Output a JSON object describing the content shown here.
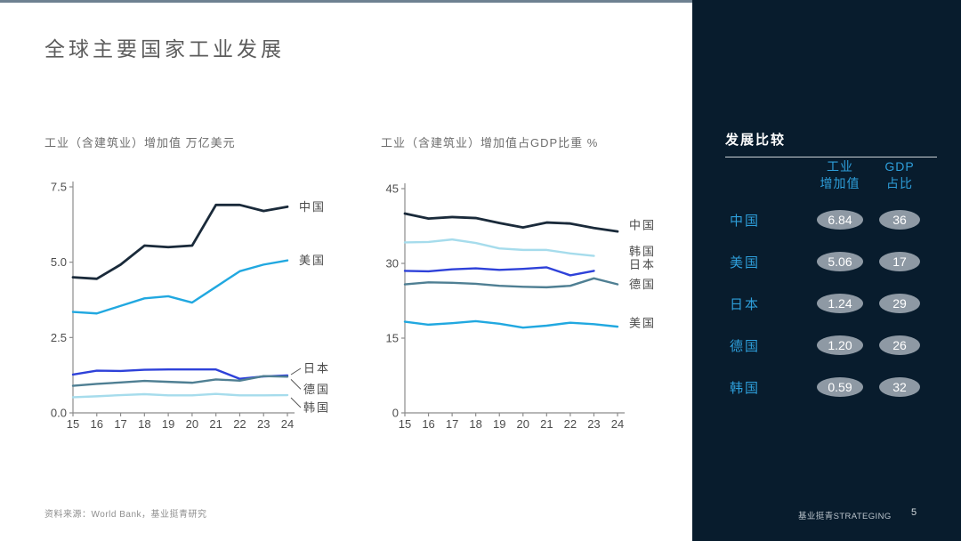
{
  "slide": {
    "title": "全球主要国家工业发展",
    "accent_strip_color": "#6e8191"
  },
  "source_note": "资料来源：World Bank，基业挺青研究",
  "footer": {
    "brand": "基业挺青STRATEGING",
    "page_number": "5"
  },
  "panel": {
    "title": "发展比较",
    "col_headers": [
      {
        "line1": "工业",
        "line2": "增加值"
      },
      {
        "line1": "GDP",
        "line2": "占比"
      }
    ],
    "rows": [
      {
        "country": "中国",
        "industry_value": "6.84",
        "gdp_share": "36"
      },
      {
        "country": "美国",
        "industry_value": "5.06",
        "gdp_share": "17"
      },
      {
        "country": "日本",
        "industry_value": "1.24",
        "gdp_share": "29"
      },
      {
        "country": "德国",
        "industry_value": "1.20",
        "gdp_share": "26"
      },
      {
        "country": "韩国",
        "industry_value": "0.59",
        "gdp_share": "32"
      }
    ],
    "colors": {
      "background": "#081c2d",
      "accent_blue": "#2e9fdb",
      "pill_bg": "#8e99a4",
      "pill_text": "#ffffff",
      "title_text": "#ffffff"
    }
  },
  "chart_data": [
    {
      "type": "line",
      "title": "工业（含建筑业）增加值 万亿美元",
      "x": [
        15,
        16,
        17,
        18,
        19,
        20,
        21,
        22,
        23,
        24
      ],
      "ylim": [
        0,
        7.5
      ],
      "yticks": [
        "0.0",
        "2.5",
        "5.0",
        "7.5"
      ],
      "grid": false,
      "legend_position": "right-of-line-labels",
      "series": [
        {
          "name": "中国",
          "color": "#1a2a3a",
          "lw": 2.8,
          "label_dy": 0,
          "values": [
            4.5,
            4.45,
            4.92,
            5.55,
            5.5,
            5.55,
            6.9,
            6.9,
            6.7,
            6.84
          ]
        },
        {
          "name": "美国",
          "color": "#21a8e0",
          "lw": 2.4,
          "label_dy": 0,
          "values": [
            3.35,
            3.3,
            3.55,
            3.8,
            3.87,
            3.66,
            4.18,
            4.7,
            4.92,
            5.06
          ]
        },
        {
          "name": "日本",
          "color": "#2e41d9",
          "lw": 2.4,
          "label_dy": -8,
          "leader": true,
          "values": [
            1.27,
            1.4,
            1.39,
            1.43,
            1.44,
            1.44,
            1.44,
            1.13,
            1.21,
            1.24
          ]
        },
        {
          "name": "德国",
          "color": "#4f7f93",
          "lw": 2.4,
          "label_dy": 14,
          "leader": true,
          "values": [
            0.9,
            0.96,
            1.01,
            1.06,
            1.03,
            1.0,
            1.11,
            1.07,
            1.22,
            1.2
          ]
        },
        {
          "name": "韩国",
          "color": "#a6dcec",
          "lw": 2.4,
          "label_dy": 14,
          "leader": true,
          "values": [
            0.52,
            0.55,
            0.59,
            0.62,
            0.58,
            0.58,
            0.63,
            0.58,
            0.58,
            0.59
          ]
        }
      ]
    },
    {
      "type": "line",
      "title": "工业（含建筑业）增加值占GDP比重 %",
      "x": [
        15,
        16,
        17,
        18,
        19,
        20,
        21,
        22,
        23,
        24
      ],
      "ylim": [
        0,
        45
      ],
      "yticks": [
        "0",
        "15",
        "30",
        "45"
      ],
      "grid": false,
      "legend_position": "right-of-line-labels",
      "series": [
        {
          "name": "中国",
          "color": "#1a2a3a",
          "lw": 2.8,
          "label_dy": -7,
          "values": [
            40.0,
            39.0,
            39.3,
            39.1,
            38.1,
            37.2,
            38.2,
            38.0,
            37.1,
            36.4
          ]
        },
        {
          "name": "韩国",
          "color": "#a6dcec",
          "lw": 2.4,
          "label_dy": -5,
          "values": [
            34.2,
            34.3,
            34.8,
            34.1,
            33.0,
            32.7,
            32.7,
            32.0,
            31.5
          ]
        },
        {
          "name": "日本",
          "color": "#2e41d9",
          "lw": 2.4,
          "label_dy": -7,
          "values": [
            28.5,
            28.4,
            28.8,
            29.0,
            28.7,
            28.9,
            29.2,
            27.6,
            28.5
          ]
        },
        {
          "name": "德国",
          "color": "#4f7f93",
          "lw": 2.4,
          "label_dy": 0,
          "values": [
            25.8,
            26.2,
            26.1,
            25.9,
            25.5,
            25.3,
            25.2,
            25.5,
            27.0,
            25.8
          ]
        },
        {
          "name": "美国",
          "color": "#21a8e0",
          "lw": 2.4,
          "label_dy": -4,
          "values": [
            18.3,
            17.7,
            18.0,
            18.4,
            17.9,
            17.1,
            17.5,
            18.1,
            17.8,
            17.3
          ]
        }
      ]
    }
  ]
}
